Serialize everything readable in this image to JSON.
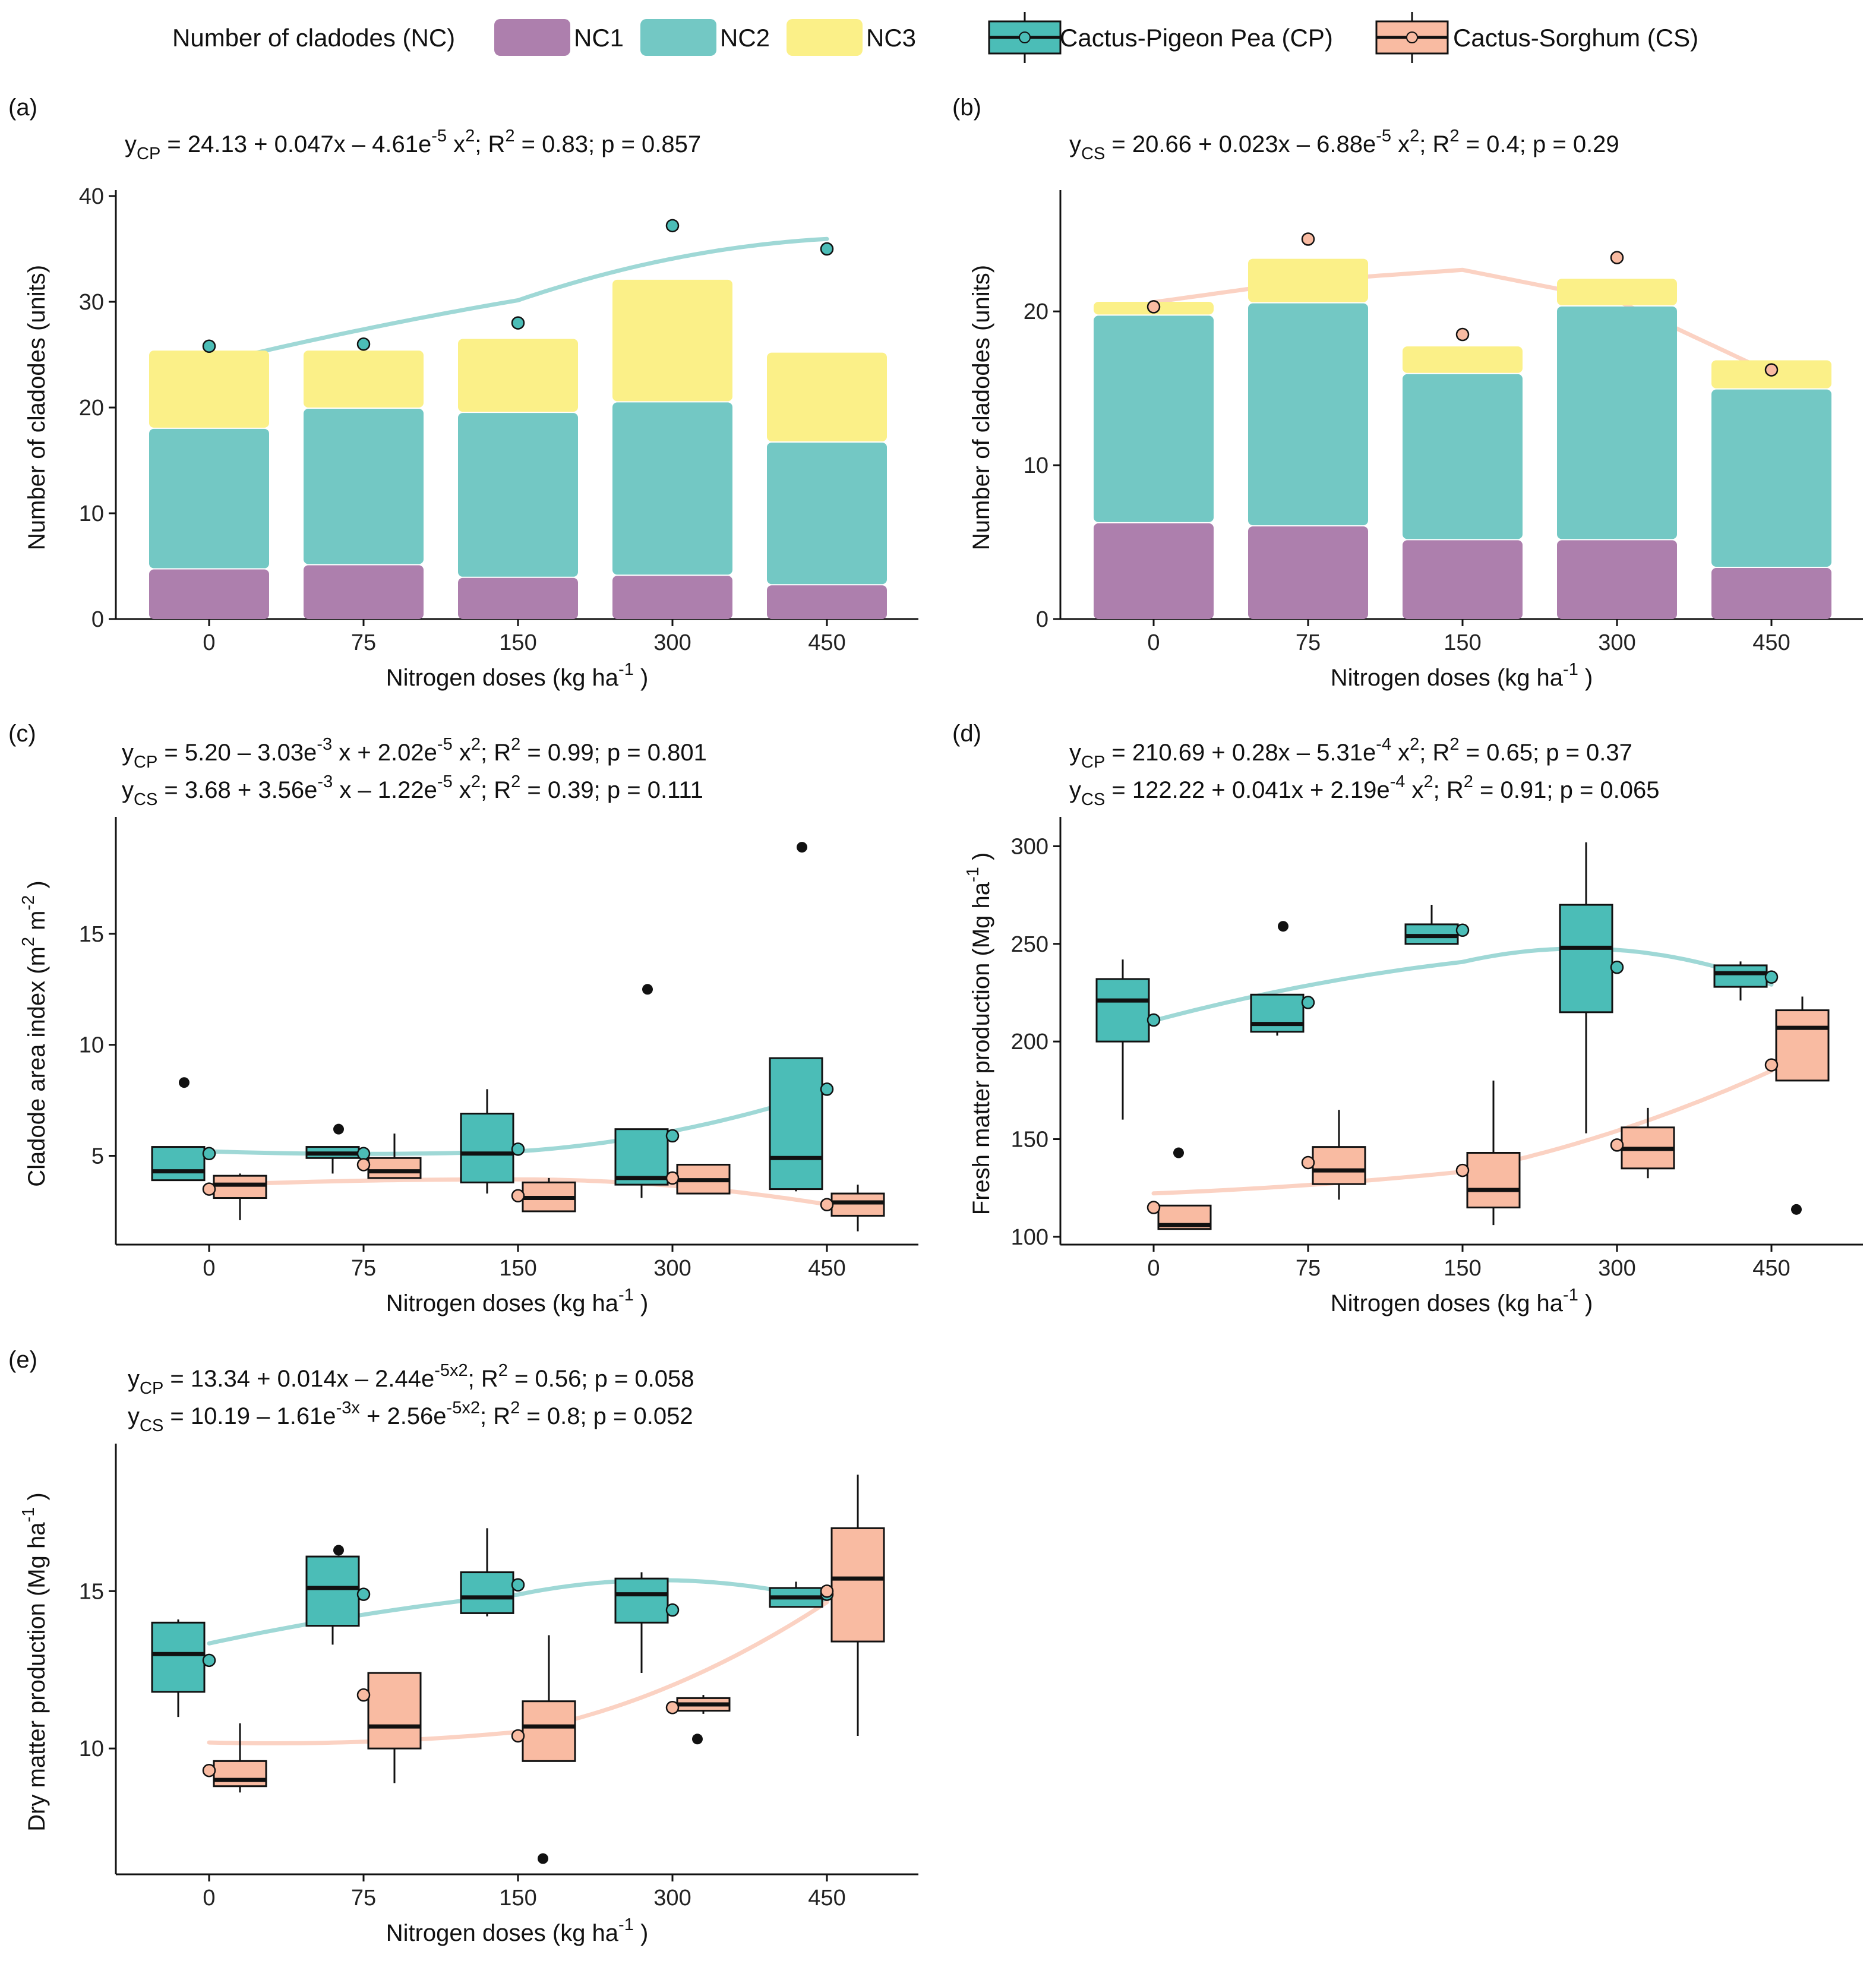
{
  "figure": {
    "colors": {
      "NC1": "#ad7fad",
      "NC2": "#73c8c4",
      "NC3": "#fbf088",
      "CP": "#4bbdb7",
      "CS": "#f9bba2",
      "CP_curve": "#9fd8d6",
      "CS_curve": "#fbd2c3"
    }
  },
  "legend": {
    "nc_title": "Number of cladodes (NC)",
    "nc1": "NC1",
    "nc2": "NC2",
    "nc3": "NC3",
    "cp": "Cactus-Pigeon Pea (CP)",
    "cs": "Cactus-Sorghum (CS)"
  },
  "chart_data": [
    {
      "panel": "(a)",
      "type": "bar",
      "stacked": true,
      "equations": [
        "y_CP = 24.13 + 0.047x – 4.61e^-5 x^2; R^2 = 0.83; p = 0.857"
      ],
      "xlabel": "Nitrogen doses (kg ha^-1 )",
      "ylabel": "Number of cladodes (units)",
      "categories": [
        "0",
        "75",
        "150",
        "300",
        "450"
      ],
      "ylim": [
        0,
        40
      ],
      "yticks": [
        0,
        10,
        20,
        30,
        40
      ],
      "series": [
        {
          "name": "NC1",
          "values": [
            4.8,
            5.2,
            4.0,
            4.2,
            3.3
          ]
        },
        {
          "name": "NC2",
          "values": [
            13.3,
            14.8,
            15.6,
            16.4,
            13.5
          ]
        },
        {
          "name": "NC3",
          "values": [
            7.4,
            5.5,
            7.0,
            11.6,
            8.5
          ]
        }
      ],
      "points": [
        {
          "series": "CP",
          "values": [
            25.8,
            26.0,
            28.0,
            37.2,
            35.0
          ]
        }
      ],
      "curves": [
        {
          "series": "CP",
          "coef": [
            24.13,
            0.047,
            -4.61e-05
          ]
        }
      ]
    },
    {
      "panel": "(b)",
      "type": "bar",
      "stacked": true,
      "equations": [
        "y_CS = 20.66 + 0.023x – 6.88e^-5 x^2; R^2 = 0.4; p = 0.29"
      ],
      "xlabel": "Nitrogen doses (kg ha^-1 )",
      "ylabel": "Number of cladodes (units)",
      "categories": [
        "0",
        "75",
        "150",
        "300",
        "450"
      ],
      "ylim": [
        0,
        27.5
      ],
      "yticks": [
        0,
        10,
        20
      ],
      "series": [
        {
          "name": "NC1",
          "values": [
            6.3,
            6.1,
            5.2,
            5.2,
            3.4
          ]
        },
        {
          "name": "NC2",
          "values": [
            13.5,
            14.5,
            10.8,
            15.2,
            11.6
          ]
        },
        {
          "name": "NC3",
          "values": [
            0.9,
            2.9,
            1.8,
            1.8,
            1.9
          ]
        }
      ],
      "points": [
        {
          "series": "CS",
          "values": [
            20.3,
            24.7,
            18.5,
            23.5,
            16.2
          ]
        }
      ],
      "curves": [
        {
          "series": "CS",
          "coef": [
            20.66,
            0.023,
            -6.88e-05
          ],
          "xmin": 0,
          "xmax": 450,
          "ymin_override": [
            20.6,
            22.0,
            22.7,
            20.7,
            16.0
          ]
        }
      ]
    },
    {
      "panel": "(c)",
      "type": "box",
      "equations": [
        "y_CP = 5.20 – 3.03e^-3 x + 2.02e^-5 x^2; R^2 = 0.99; p = 0.801",
        "y_CS = 3.68 + 3.56e^-3 x – 1.22e^-5 x^2; R^2 = 0.39; p = 0.111"
      ],
      "xlabel": "Nitrogen doses (kg ha^-1 )",
      "ylabel": "Cladode area index (m^2 m^-2 )",
      "categories": [
        "0",
        "75",
        "150",
        "300",
        "450"
      ],
      "ylim": [
        1.0,
        20.0
      ],
      "yticks": [
        5,
        10,
        15
      ],
      "boxes": [
        {
          "series": "CP",
          "stats": [
            {
              "min": 3.9,
              "q1": 3.9,
              "median": 4.3,
              "q3": 5.4,
              "max": 5.4,
              "mean": 5.1,
              "outliers": [
                8.3
              ]
            },
            {
              "min": 4.2,
              "q1": 4.9,
              "median": 5.1,
              "q3": 5.4,
              "max": 5.4,
              "mean": 5.1,
              "outliers": [
                6.2
              ]
            },
            {
              "min": 3.3,
              "q1": 3.8,
              "median": 5.1,
              "q3": 6.9,
              "max": 8.0,
              "mean": 5.3,
              "outliers": []
            },
            {
              "min": 3.1,
              "q1": 3.7,
              "median": 4.0,
              "q3": 6.2,
              "max": 6.2,
              "mean": 5.9,
              "outliers": [
                12.5
              ]
            },
            {
              "min": 3.4,
              "q1": 3.5,
              "median": 4.9,
              "q3": 9.4,
              "max": 9.4,
              "mean": 8.0,
              "outliers": [
                18.9
              ]
            }
          ]
        },
        {
          "series": "CS",
          "stats": [
            {
              "min": 2.1,
              "q1": 3.1,
              "median": 3.7,
              "q3": 4.1,
              "max": 4.2,
              "mean": 3.5,
              "outliers": []
            },
            {
              "min": 4.0,
              "q1": 4.0,
              "median": 4.3,
              "q3": 4.9,
              "max": 6.0,
              "mean": 4.6,
              "outliers": []
            },
            {
              "min": 2.5,
              "q1": 2.5,
              "median": 3.1,
              "q3": 3.8,
              "max": 4.0,
              "mean": 3.2,
              "outliers": []
            },
            {
              "min": 3.3,
              "q1": 3.3,
              "median": 3.9,
              "q3": 4.6,
              "max": 4.6,
              "mean": 4.0,
              "outliers": []
            },
            {
              "min": 1.6,
              "q1": 2.3,
              "median": 2.9,
              "q3": 3.3,
              "max": 3.7,
              "mean": 2.8,
              "outliers": []
            }
          ]
        }
      ],
      "curves": [
        {
          "series": "CP",
          "coef": [
            5.2,
            -0.00303,
            2.02e-05
          ]
        },
        {
          "series": "CS",
          "coef": [
            3.68,
            0.00356,
            -1.22e-05
          ]
        }
      ]
    },
    {
      "panel": "(d)",
      "type": "box",
      "equations": [
        "y_CP = 210.69 + 0.28x – 5.31e^-4 x^2; R^2 = 0.65; p = 0.37",
        "y_CS = 122.22 + 0.041x + 2.19e^-4 x^2; R^2 = 0.91; p = 0.065"
      ],
      "xlabel": "Nitrogen doses (kg ha^-1 )",
      "ylabel": "Fresh matter production (Mg ha^-1 )",
      "categories": [
        "0",
        "75",
        "150",
        "300",
        "450"
      ],
      "ylim": [
        96,
        312
      ],
      "yticks": [
        100,
        150,
        200,
        250,
        300
      ],
      "boxes": [
        {
          "series": "CP",
          "stats": [
            {
              "min": 160,
              "q1": 200,
              "median": 221,
              "q3": 232,
              "max": 242,
              "mean": 211,
              "outliers": []
            },
            {
              "min": 203,
              "q1": 205,
              "median": 209,
              "q3": 224,
              "max": 224,
              "mean": 220,
              "outliers": [
                259
              ]
            },
            {
              "min": 250,
              "q1": 250,
              "median": 254,
              "q3": 260,
              "max": 270,
              "mean": 257,
              "outliers": []
            },
            {
              "min": 153,
              "q1": 215,
              "median": 248,
              "q3": 270,
              "max": 302,
              "mean": 238,
              "outliers": []
            },
            {
              "min": 221,
              "q1": 228,
              "median": 235,
              "q3": 239,
              "max": 241,
              "mean": 233,
              "outliers": []
            }
          ]
        },
        {
          "series": "CS",
          "stats": [
            {
              "min": 104,
              "q1": 104,
              "median": 106,
              "q3": 116,
              "max": 116,
              "mean": 115,
              "outliers": [
                143
              ]
            },
            {
              "min": 119,
              "q1": 127,
              "median": 134,
              "q3": 146,
              "max": 165,
              "mean": 138,
              "outliers": []
            },
            {
              "min": 106,
              "q1": 115,
              "median": 124,
              "q3": 143,
              "max": 180,
              "mean": 134,
              "outliers": []
            },
            {
              "min": 130,
              "q1": 135,
              "median": 145,
              "q3": 156,
              "max": 166,
              "mean": 147,
              "outliers": []
            },
            {
              "min": 180,
              "q1": 180,
              "median": 207,
              "q3": 216,
              "max": 223,
              "mean": 188,
              "outliers": [
                114
              ]
            }
          ]
        }
      ],
      "curves": [
        {
          "series": "CP",
          "coef": [
            210.69,
            0.28,
            -0.000531
          ]
        },
        {
          "series": "CS",
          "coef": [
            122.22,
            0.041,
            0.000219
          ]
        }
      ]
    },
    {
      "panel": "(e)",
      "type": "box",
      "equations": [
        "y_CP = 13.34 + 0.014x – 2.44e^-5x^2; R^2 = 0.56; p = 0.058",
        "y_CS = 10.19 – 1.61e^-3x + 2.56e^-5x^2; R^2 = 0.8; p = 0.052"
      ],
      "xlabel": "Nitrogen doses (kg ha^-1 )",
      "ylabel": "Dry matter production (Mg ha^-1 )",
      "categories": [
        "0",
        "75",
        "150",
        "300",
        "450"
      ],
      "ylim": [
        6.0,
        19.5
      ],
      "yticks": [
        10,
        15
      ],
      "boxes": [
        {
          "series": "CP",
          "stats": [
            {
              "min": 11.0,
              "q1": 11.8,
              "median": 13.0,
              "q3": 14.0,
              "max": 14.1,
              "mean": 12.8,
              "outliers": []
            },
            {
              "min": 13.3,
              "q1": 13.9,
              "median": 15.1,
              "q3": 16.1,
              "max": 16.1,
              "mean": 14.9,
              "outliers": [
                16.3
              ]
            },
            {
              "min": 14.2,
              "q1": 14.3,
              "median": 14.8,
              "q3": 15.6,
              "max": 17.0,
              "mean": 15.2,
              "outliers": []
            },
            {
              "min": 12.4,
              "q1": 14.0,
              "median": 14.9,
              "q3": 15.4,
              "max": 15.6,
              "mean": 14.4,
              "outliers": []
            },
            {
              "min": 14.5,
              "q1": 14.5,
              "median": 14.8,
              "q3": 15.1,
              "max": 15.3,
              "mean": 14.9,
              "outliers": []
            }
          ]
        },
        {
          "series": "CS",
          "stats": [
            {
              "min": 8.6,
              "q1": 8.8,
              "median": 9.0,
              "q3": 9.6,
              "max": 10.8,
              "mean": 9.3,
              "outliers": []
            },
            {
              "min": 8.9,
              "q1": 10.0,
              "median": 10.7,
              "q3": 12.4,
              "max": 12.4,
              "mean": 11.7,
              "outliers": []
            },
            {
              "min": 9.6,
              "q1": 9.6,
              "median": 10.7,
              "q3": 11.5,
              "max": 13.6,
              "mean": 10.4,
              "outliers": [
                6.5
              ]
            },
            {
              "min": 11.1,
              "q1": 11.2,
              "median": 11.4,
              "q3": 11.6,
              "max": 11.7,
              "mean": 11.3,
              "outliers": [
                10.3
              ]
            },
            {
              "min": 10.4,
              "q1": 13.4,
              "median": 15.4,
              "q3": 17.0,
              "max": 18.7,
              "mean": 15.0,
              "outliers": []
            }
          ]
        }
      ],
      "curves": [
        {
          "series": "CP",
          "coef": [
            13.34,
            0.014,
            -2.44e-05
          ]
        },
        {
          "series": "CS",
          "coef": [
            10.19,
            -0.00161,
            2.56e-05
          ]
        }
      ]
    }
  ]
}
